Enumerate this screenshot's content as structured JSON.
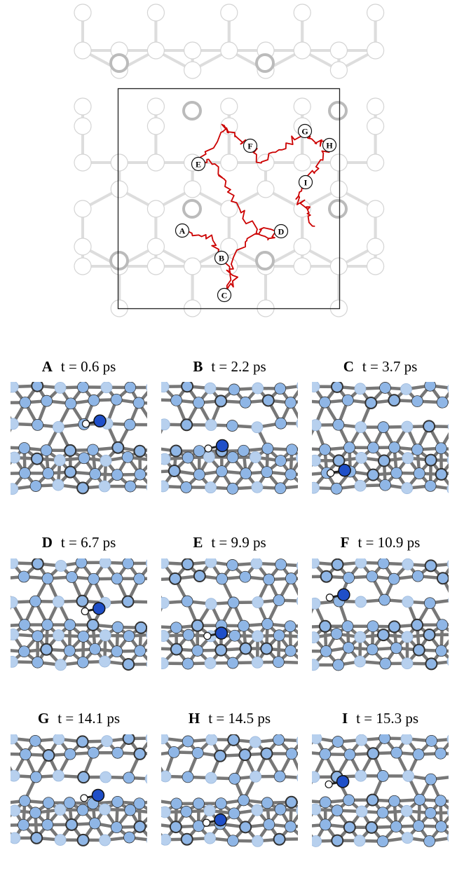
{
  "panels": [
    {
      "letter": "A",
      "time": "t = 0.6 ps"
    },
    {
      "letter": "B",
      "time": "t = 2.2 ps"
    },
    {
      "letter": "C",
      "time": "t = 3.7 ps"
    },
    {
      "letter": "D",
      "time": "t = 6.7 ps"
    },
    {
      "letter": "E",
      "time": "t = 9.9 ps"
    },
    {
      "letter": "F",
      "time": "t = 10.9 ps"
    },
    {
      "letter": "G",
      "time": "t = 14.1 ps"
    },
    {
      "letter": "H",
      "time": "t = 14.5 ps"
    },
    {
      "letter": "I",
      "time": "t = 15.3 ps"
    }
  ]
}
